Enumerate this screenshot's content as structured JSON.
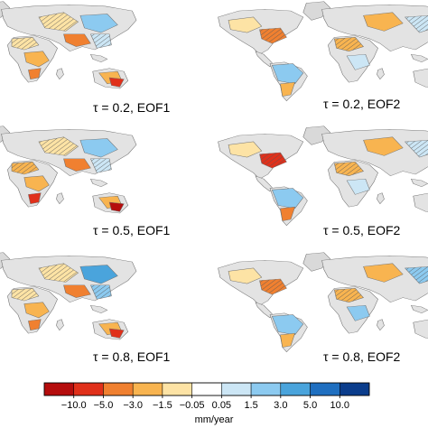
{
  "chart_data": {
    "type": "heatmap",
    "panels": [
      {
        "label": "τ = 0.2, EOF1"
      },
      {
        "label": "τ = 0.2, EOF2"
      },
      {
        "label": "τ = 0.5, EOF1"
      },
      {
        "label": "τ = 0.5, EOF2"
      },
      {
        "label": "τ = 0.8, EOF1"
      },
      {
        "label": "τ = 0.8, EOF2"
      }
    ],
    "colorbar": {
      "ticks": [
        "−10.0",
        "−5.0",
        "−3.0",
        "−1.5",
        "−0.05",
        "0.05",
        "1.5",
        "3.0",
        "5.0",
        "10.0"
      ],
      "colors": [
        "#b50d0d",
        "#e0301a",
        "#f08030",
        "#f8b450",
        "#fde3a5",
        "#ffffff",
        "#cce6f5",
        "#8ccaf0",
        "#4aa4dc",
        "#1f6fc0",
        "#0b3d8c"
      ],
      "unit": "mm/year"
    }
  },
  "colors": {
    "land_gray": "#e3e3e3",
    "border": "#6f6f6f"
  }
}
